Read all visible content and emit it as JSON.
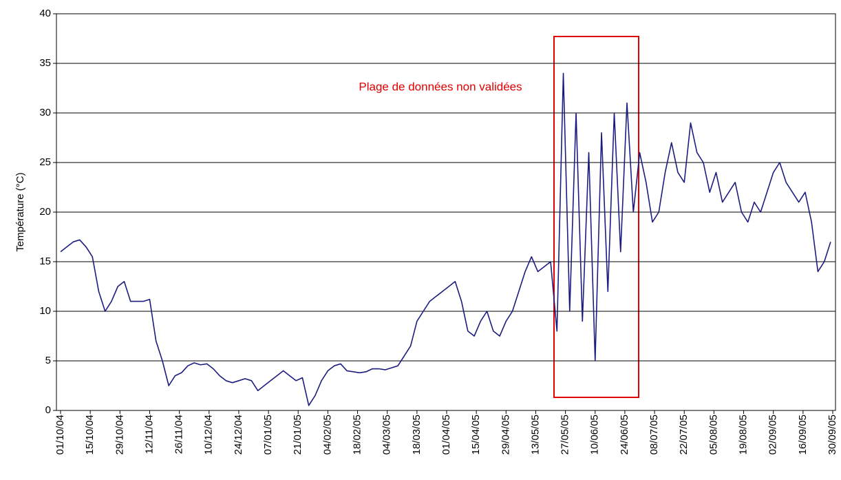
{
  "chart_data": {
    "type": "line",
    "y_label": "Température (°C)",
    "annotation": "Plage de données non validées",
    "xlim": [
      "01/10/04",
      "30/09/05"
    ],
    "xticks": [
      "01/10/04",
      "15/10/04",
      "29/10/04",
      "12/11/04",
      "26/11/04",
      "10/12/04",
      "24/12/04",
      "07/01/05",
      "21/01/05",
      "04/02/05",
      "18/02/05",
      "04/03/05",
      "18/03/05",
      "01/04/05",
      "15/04/05",
      "29/04/05",
      "13/05/05",
      "27/05/05",
      "10/06/05",
      "24/06/05",
      "08/07/05",
      "22/07/05",
      "05/08/05",
      "19/08/05",
      "02/09/05",
      "16/09/05",
      "30/09/05"
    ],
    "ylim": [
      0,
      40
    ],
    "yticks": [
      0,
      5,
      10,
      15,
      20,
      25,
      30,
      35,
      40
    ],
    "grid": true,
    "x": [
      "01/10/04",
      "04/10/04",
      "07/10/04",
      "10/10/04",
      "13/10/04",
      "16/10/04",
      "19/10/04",
      "22/10/04",
      "25/10/04",
      "28/10/04",
      "31/10/04",
      "03/11/04",
      "06/11/04",
      "09/11/04",
      "12/11/04",
      "15/11/04",
      "18/11/04",
      "21/11/04",
      "24/11/04",
      "27/11/04",
      "30/11/04",
      "03/12/04",
      "06/12/04",
      "09/12/04",
      "12/12/04",
      "15/12/04",
      "18/12/04",
      "21/12/04",
      "24/12/04",
      "27/12/04",
      "30/12/04",
      "02/01/05",
      "05/01/05",
      "08/01/05",
      "11/01/05",
      "14/01/05",
      "17/01/05",
      "20/01/05",
      "23/01/05",
      "26/01/05",
      "29/01/05",
      "01/02/05",
      "04/02/05",
      "07/02/05",
      "10/02/05",
      "13/02/05",
      "16/02/05",
      "19/02/05",
      "22/02/05",
      "25/02/05",
      "28/02/05",
      "03/03/05",
      "06/03/05",
      "09/03/05",
      "12/03/05",
      "15/03/05",
      "18/03/05",
      "21/03/05",
      "24/03/05",
      "27/03/05",
      "30/03/05",
      "02/04/05",
      "05/04/05",
      "08/04/05",
      "11/04/05",
      "14/04/05",
      "17/04/05",
      "20/04/05",
      "23/04/05",
      "26/04/05",
      "29/04/05",
      "02/05/05",
      "05/05/05",
      "08/05/05",
      "11/05/05",
      "14/05/05",
      "17/05/05",
      "20/05/05",
      "23/05/05",
      "26/05/05",
      "29/05/05",
      "01/06/05",
      "04/06/05",
      "07/06/05",
      "10/06/05",
      "13/06/05",
      "16/06/05",
      "19/06/05",
      "22/06/05",
      "25/06/05",
      "28/06/05",
      "01/07/05",
      "04/07/05",
      "07/07/05",
      "10/07/05",
      "13/07/05",
      "16/07/05",
      "19/07/05",
      "22/07/05",
      "25/07/05",
      "28/07/05",
      "31/07/05",
      "03/08/05",
      "06/08/05",
      "09/08/05",
      "12/08/05",
      "15/08/05",
      "18/08/05",
      "21/08/05",
      "24/08/05",
      "27/08/05",
      "30/08/05",
      "02/09/05",
      "05/09/05",
      "08/09/05",
      "11/09/05",
      "14/09/05",
      "17/09/05",
      "20/09/05",
      "23/09/05",
      "26/09/05",
      "29/09/05"
    ],
    "series": [
      {
        "color": "#1c1c80",
        "values": [
          16,
          16.5,
          17,
          17.2,
          16.5,
          15.5,
          12,
          10,
          11,
          12.5,
          13,
          11,
          11,
          11,
          11.2,
          7,
          5,
          2.5,
          3.5,
          3.8,
          4.5,
          4.8,
          4.6,
          4.7,
          4.2,
          3.5,
          3,
          2.8,
          3,
          3.2,
          3,
          2,
          2.5,
          3,
          3.5,
          4,
          3.5,
          3,
          3.3,
          0.5,
          1.5,
          3,
          4,
          4.5,
          4.7,
          4,
          3.9,
          3.8,
          3.9,
          4.2,
          4.2,
          4.1,
          4.3,
          4.5,
          5.5,
          6.5,
          9,
          10,
          11,
          11.5,
          12,
          12.5,
          13,
          11,
          8,
          7.5,
          9,
          10,
          8,
          7.5,
          9,
          10,
          12,
          14,
          15.5,
          14,
          14.5,
          15,
          8,
          34,
          10,
          30,
          9,
          26,
          5,
          28,
          12,
          30,
          16,
          31,
          20,
          26,
          23,
          19,
          20,
          24,
          27,
          24,
          23,
          29,
          26,
          25,
          22,
          24,
          21,
          22,
          23,
          20,
          19,
          21,
          20,
          22,
          24,
          25,
          23,
          22,
          21,
          22,
          19,
          14,
          15,
          17
        ]
      }
    ]
  }
}
